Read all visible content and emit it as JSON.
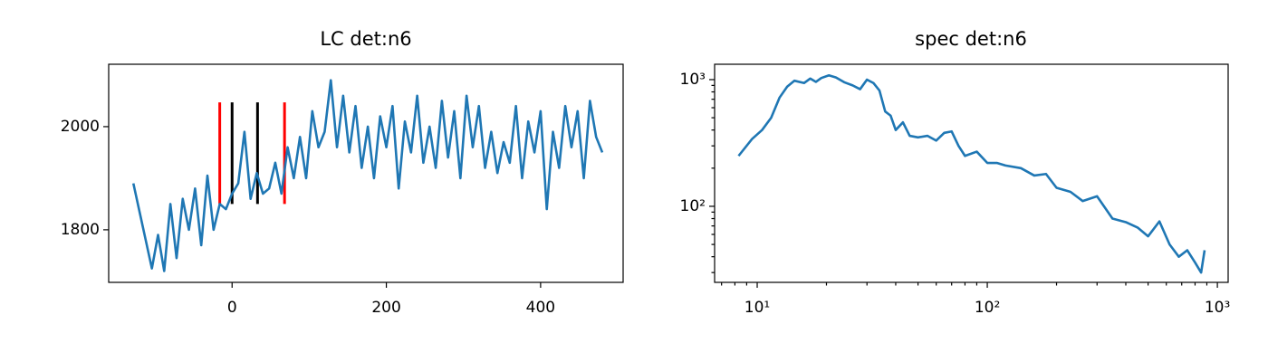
{
  "chart_data": [
    {
      "type": "line",
      "title": "LC det:n6",
      "xlim": [
        -160,
        507
      ],
      "ylim": [
        1698,
        2121
      ],
      "xticks": [
        0,
        200,
        400
      ],
      "yticks": [
        1800,
        2000
      ],
      "series": [
        {
          "color": "#1f77b4",
          "x": [
            -128,
            -120,
            -112,
            -104,
            -96,
            -88,
            -80,
            -72,
            -64,
            -56,
            -48,
            -40,
            -32,
            -24,
            -16,
            -8,
            0,
            8,
            16,
            24,
            32,
            40,
            48,
            56,
            64,
            72,
            80,
            88,
            96,
            104,
            112,
            120,
            128,
            136,
            144,
            152,
            160,
            168,
            176,
            184,
            192,
            200,
            208,
            216,
            224,
            232,
            240,
            248,
            256,
            264,
            272,
            280,
            288,
            296,
            304,
            312,
            320,
            328,
            336,
            344,
            352,
            360,
            368,
            376,
            384,
            392,
            400,
            408,
            416,
            424,
            432,
            440,
            448,
            456,
            464,
            472,
            480
          ],
          "values": [
            1890,
            1835,
            1780,
            1725,
            1790,
            1720,
            1850,
            1745,
            1860,
            1800,
            1880,
            1770,
            1905,
            1800,
            1850,
            1840,
            1870,
            1890,
            1990,
            1860,
            1910,
            1870,
            1880,
            1930,
            1870,
            1960,
            1900,
            1980,
            1900,
            2030,
            1960,
            1990,
            2090,
            1960,
            2060,
            1950,
            2040,
            1920,
            2000,
            1900,
            2020,
            1960,
            2040,
            1880,
            2010,
            1950,
            2060,
            1930,
            2000,
            1920,
            2050,
            1940,
            2030,
            1900,
            2060,
            1960,
            2040,
            1920,
            1990,
            1910,
            1970,
            1930,
            2040,
            1900,
            2010,
            1950,
            2030,
            1840,
            1990,
            1920,
            2040,
            1960,
            2030,
            1900,
            2050,
            1980,
            1950
          ]
        }
      ],
      "vlines": [
        {
          "x": -16,
          "ymin": 1850,
          "ymax": 2047,
          "color": "#ff0000"
        },
        {
          "x": 0,
          "ymin": 1850,
          "ymax": 2047,
          "color": "#000000"
        },
        {
          "x": 33,
          "ymin": 1850,
          "ymax": 2047,
          "color": "#000000"
        },
        {
          "x": 68,
          "ymin": 1850,
          "ymax": 2047,
          "color": "#ff0000"
        }
      ]
    },
    {
      "type": "line",
      "title": "spec det:n6",
      "xlog": true,
      "ylog": true,
      "xlim": [
        6.53,
        1114
      ],
      "ylim": [
        25.1,
        1322
      ],
      "xticks": [
        {
          "value": 10,
          "label": "10¹"
        },
        {
          "value": 100,
          "label": "10²"
        },
        {
          "value": 1000,
          "label": "10³"
        }
      ],
      "yticks": [
        {
          "value": 100,
          "label": "10²"
        },
        {
          "value": 1000,
          "label": "10³"
        }
      ],
      "xminorticks": [
        7,
        8,
        9,
        20,
        30,
        40,
        50,
        60,
        70,
        80,
        90,
        200,
        300,
        400,
        500,
        600,
        700,
        800,
        900
      ],
      "yminorticks": [
        30,
        40,
        50,
        60,
        70,
        80,
        90,
        200,
        300,
        400,
        500,
        600,
        700,
        800,
        900
      ],
      "series": [
        {
          "color": "#1f77b4",
          "x": [
            8.3,
            9.5,
            10.5,
            11.5,
            12.5,
            13.5,
            14.5,
            16,
            17,
            18,
            19,
            20.5,
            22,
            24,
            26,
            28,
            30,
            32,
            34,
            36,
            38,
            40,
            43,
            46,
            50,
            55,
            60,
            65,
            70,
            75,
            80,
            90,
            100,
            110,
            120,
            140,
            160,
            180,
            200,
            230,
            260,
            300,
            350,
            400,
            450,
            500,
            560,
            620,
            680,
            740,
            800,
            850,
            880
          ],
          "values": [
            250,
            340,
            400,
            500,
            720,
            880,
            980,
            940,
            1020,
            960,
            1030,
            1080,
            1040,
            950,
            900,
            840,
            1000,
            940,
            820,
            560,
            520,
            400,
            460,
            360,
            350,
            360,
            330,
            380,
            390,
            300,
            250,
            270,
            220,
            220,
            210,
            200,
            175,
            180,
            140,
            130,
            110,
            120,
            80,
            75,
            68,
            58,
            76,
            50,
            40,
            45,
            36,
            30,
            45
          ]
        }
      ]
    }
  ]
}
